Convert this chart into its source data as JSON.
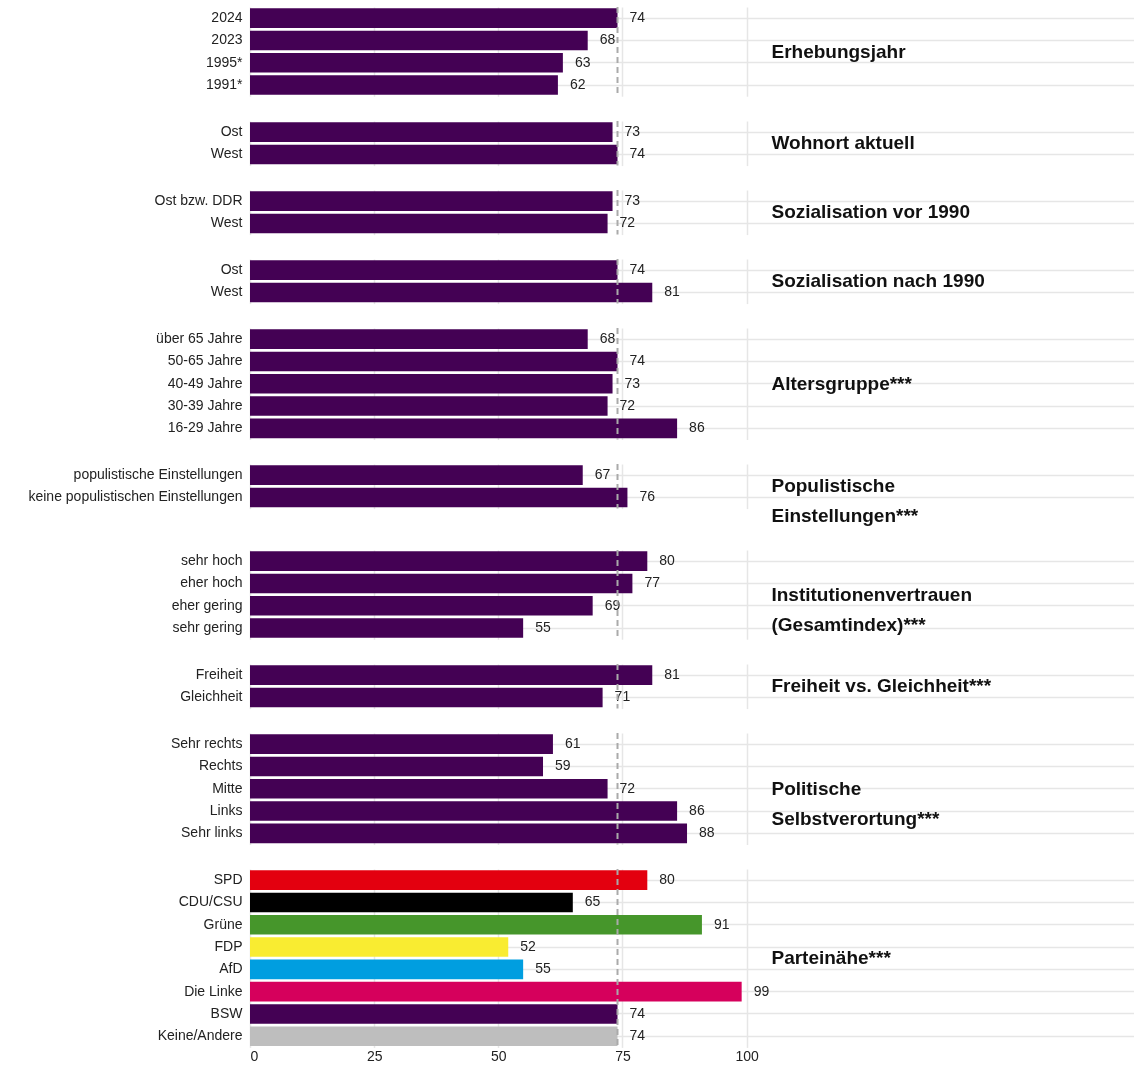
{
  "chart_data": [
    {
      "type": "bar",
      "orientation": "horizontal",
      "title": "Erhebungsjahr",
      "categories": [
        "2024",
        "2023",
        "1995*",
        "1991*"
      ],
      "values": [
        74,
        68,
        63,
        62
      ],
      "color": "#440154",
      "data_labels": true,
      "xlim": [
        0,
        178
      ],
      "xticks": [
        0,
        25,
        50,
        75,
        100
      ],
      "grid": true,
      "tick_labels": "y",
      "ref_lines": [
        {
          "axis": "x",
          "value": 74,
          "line_style": "dashed",
          "color": "#aaaaaa"
        }
      ]
    },
    {
      "type": "bar",
      "orientation": "horizontal",
      "title": "Wohnort aktuell",
      "categories": [
        "Ost",
        "West"
      ],
      "values": [
        73,
        74
      ],
      "color": "#440154",
      "data_labels": true,
      "xlim": [
        0,
        178
      ],
      "xticks": [
        0,
        25,
        50,
        75,
        100
      ],
      "grid": true,
      "tick_labels": "y",
      "ref_lines": [
        {
          "axis": "x",
          "value": 74,
          "line_style": "dashed",
          "color": "#aaaaaa"
        }
      ]
    },
    {
      "type": "bar",
      "orientation": "horizontal",
      "title": "Sozialisation vor 1990",
      "categories": [
        "Ost bzw. DDR",
        "West"
      ],
      "values": [
        73,
        72
      ],
      "color": "#440154",
      "data_labels": true,
      "xlim": [
        0,
        178
      ],
      "xticks": [
        0,
        25,
        50,
        75,
        100
      ],
      "grid": true,
      "tick_labels": "y",
      "ref_lines": [
        {
          "axis": "x",
          "value": 74,
          "line_style": "dashed",
          "color": "#aaaaaa"
        }
      ]
    },
    {
      "type": "bar",
      "orientation": "horizontal",
      "title": "Sozialisation nach 1990",
      "categories": [
        "Ost",
        "West"
      ],
      "values": [
        74,
        81
      ],
      "color": "#440154",
      "data_labels": true,
      "xlim": [
        0,
        178
      ],
      "xticks": [
        0,
        25,
        50,
        75,
        100
      ],
      "grid": true,
      "tick_labels": "y",
      "ref_lines": [
        {
          "axis": "x",
          "value": 74,
          "line_style": "dashed",
          "color": "#aaaaaa"
        }
      ]
    },
    {
      "type": "bar",
      "orientation": "horizontal",
      "title": "Altersgruppe***",
      "categories": [
        "über 65 Jahre",
        "50-65 Jahre",
        "40-49 Jahre",
        "30-39 Jahre",
        "16-29 Jahre"
      ],
      "values": [
        68,
        74,
        73,
        72,
        86
      ],
      "color": "#440154",
      "data_labels": true,
      "xlim": [
        0,
        178
      ],
      "xticks": [
        0,
        25,
        50,
        75,
        100
      ],
      "grid": true,
      "tick_labels": "y",
      "ref_lines": [
        {
          "axis": "x",
          "value": 74,
          "line_style": "dashed",
          "color": "#aaaaaa"
        }
      ]
    },
    {
      "type": "bar",
      "orientation": "horizontal",
      "title": "Populistische\nEinstellungen***",
      "categories": [
        "populistische Einstellungen",
        "keine populistischen Einstellungen"
      ],
      "values": [
        67,
        76
      ],
      "color": "#440154",
      "data_labels": true,
      "xlim": [
        0,
        178
      ],
      "xticks": [
        0,
        25,
        50,
        75,
        100
      ],
      "grid": true,
      "tick_labels": "y",
      "ref_lines": [
        {
          "axis": "x",
          "value": 74,
          "line_style": "dashed",
          "color": "#aaaaaa"
        }
      ]
    },
    {
      "type": "bar",
      "orientation": "horizontal",
      "title": "Institutionenvertrauen\n(Gesamtindex)***",
      "categories": [
        "sehr hoch",
        "eher hoch",
        "eher gering",
        "sehr gering"
      ],
      "values": [
        80,
        77,
        69,
        55
      ],
      "color": "#440154",
      "data_labels": true,
      "xlim": [
        0,
        178
      ],
      "xticks": [
        0,
        25,
        50,
        75,
        100
      ],
      "grid": true,
      "tick_labels": "y",
      "ref_lines": [
        {
          "axis": "x",
          "value": 74,
          "line_style": "dashed",
          "color": "#aaaaaa"
        }
      ]
    },
    {
      "type": "bar",
      "orientation": "horizontal",
      "title": "Freiheit vs. Gleichheit***",
      "categories": [
        "Freiheit",
        "Gleichheit"
      ],
      "values": [
        81,
        71
      ],
      "color": "#440154",
      "data_labels": true,
      "xlim": [
        0,
        178
      ],
      "xticks": [
        0,
        25,
        50,
        75,
        100
      ],
      "grid": true,
      "tick_labels": "y",
      "ref_lines": [
        {
          "axis": "x",
          "value": 74,
          "line_style": "dashed",
          "color": "#aaaaaa"
        }
      ]
    },
    {
      "type": "bar",
      "orientation": "horizontal",
      "title": "Politische\nSelbstverortung***",
      "categories": [
        "Sehr rechts",
        "Rechts",
        "Mitte",
        "Links",
        "Sehr links"
      ],
      "values": [
        61,
        59,
        72,
        86,
        88
      ],
      "color": "#440154",
      "data_labels": true,
      "xlim": [
        0,
        178
      ],
      "xticks": [
        0,
        25,
        50,
        75,
        100
      ],
      "grid": true,
      "tick_labels": "y",
      "ref_lines": [
        {
          "axis": "x",
          "value": 74,
          "line_style": "dashed",
          "color": "#aaaaaa"
        }
      ]
    },
    {
      "type": "bar",
      "orientation": "horizontal",
      "title": "Parteinähe***",
      "categories": [
        "SPD",
        "CDU/CSU",
        "Grüne",
        "FDP",
        "AfD",
        "Die Linke",
        "BSW",
        "Keine/Andere"
      ],
      "values": [
        80,
        65,
        91,
        52,
        55,
        99,
        74,
        74
      ],
      "colors": [
        "#e3000f",
        "#000000",
        "#46962b",
        "#f9ec31",
        "#009ee0",
        "#d6005c",
        "#440154",
        "#bebebe"
      ],
      "data_labels": true,
      "xlim": [
        0,
        178
      ],
      "xticks": [
        0,
        25,
        50,
        75,
        100
      ],
      "grid": true,
      "ref_lines": [
        {
          "axis": "x",
          "value": 74,
          "line_style": "dashed",
          "color": "#aaaaaa"
        }
      ]
    }
  ]
}
